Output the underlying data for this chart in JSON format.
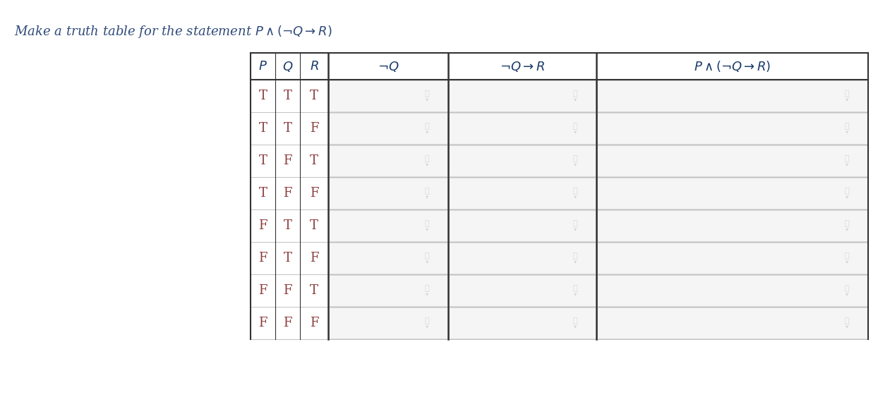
{
  "title": "Make a truth table for the statement $P \\wedge (\\neg Q \\rightarrow R)$",
  "title_color": "#2e4a7a",
  "title_fontsize": 13,
  "background_color": "#ffffff",
  "rows": [
    [
      "T",
      "T",
      "T"
    ],
    [
      "T",
      "T",
      "F"
    ],
    [
      "T",
      "F",
      "T"
    ],
    [
      "T",
      "F",
      "F"
    ],
    [
      "F",
      "T",
      "T"
    ],
    [
      "F",
      "T",
      "F"
    ],
    [
      "F",
      "F",
      "T"
    ],
    [
      "F",
      "F",
      "F"
    ]
  ],
  "pqr_headers": [
    "$P$",
    "$Q$",
    "$R$"
  ],
  "col_headers": [
    "$\\neg Q$",
    "$\\neg Q \\rightarrow R$",
    "$P \\wedge (\\neg Q \\rightarrow R)$"
  ],
  "tf_color": "#8b3a3a",
  "header_color": "#1a3a6a",
  "grid_color": "#aaaaaa",
  "thick_border_color": "#333333",
  "cell_bg": "#ffffff",
  "input_bg": "#f0f0f0",
  "pencil_color": "#aaaaaa"
}
